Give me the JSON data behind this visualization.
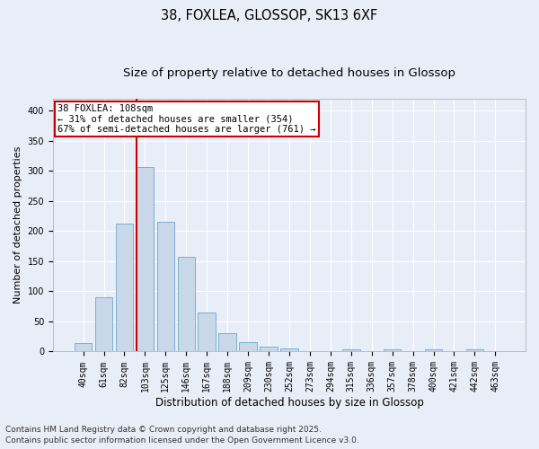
{
  "title_line1": "38, FOXLEA, GLOSSOP, SK13 6XF",
  "title_line2": "Size of property relative to detached houses in Glossop",
  "xlabel": "Distribution of detached houses by size in Glossop",
  "ylabel": "Number of detached properties",
  "categories": [
    "40sqm",
    "61sqm",
    "82sqm",
    "103sqm",
    "125sqm",
    "146sqm",
    "167sqm",
    "188sqm",
    "209sqm",
    "230sqm",
    "252sqm",
    "273sqm",
    "294sqm",
    "315sqm",
    "336sqm",
    "357sqm",
    "378sqm",
    "400sqm",
    "421sqm",
    "442sqm",
    "463sqm"
  ],
  "values": [
    14,
    90,
    213,
    307,
    216,
    158,
    65,
    30,
    15,
    8,
    5,
    1,
    0,
    3,
    0,
    3,
    0,
    4,
    0,
    4,
    1
  ],
  "bar_color": "#c8d8e8",
  "bar_edge_color": "#7bafd4",
  "vline_x_index": 3,
  "vline_color": "#cc0000",
  "annotation_box_text": "38 FOXLEA: 108sqm\n← 31% of detached houses are smaller (354)\n67% of semi-detached houses are larger (761) →",
  "annotation_box_color": "#cc0000",
  "annotation_text_fontsize": 7.5,
  "ylim": [
    0,
    420
  ],
  "yticks": [
    0,
    50,
    100,
    150,
    200,
    250,
    300,
    350,
    400
  ],
  "background_color": "#e8eef8",
  "plot_bg_color": "#e8eef8",
  "footer_line1": "Contains HM Land Registry data © Crown copyright and database right 2025.",
  "footer_line2": "Contains public sector information licensed under the Open Government Licence v3.0.",
  "title_fontsize": 10.5,
  "subtitle_fontsize": 9.5,
  "xlabel_fontsize": 8.5,
  "ylabel_fontsize": 8,
  "footer_fontsize": 6.5,
  "tick_fontsize": 7
}
